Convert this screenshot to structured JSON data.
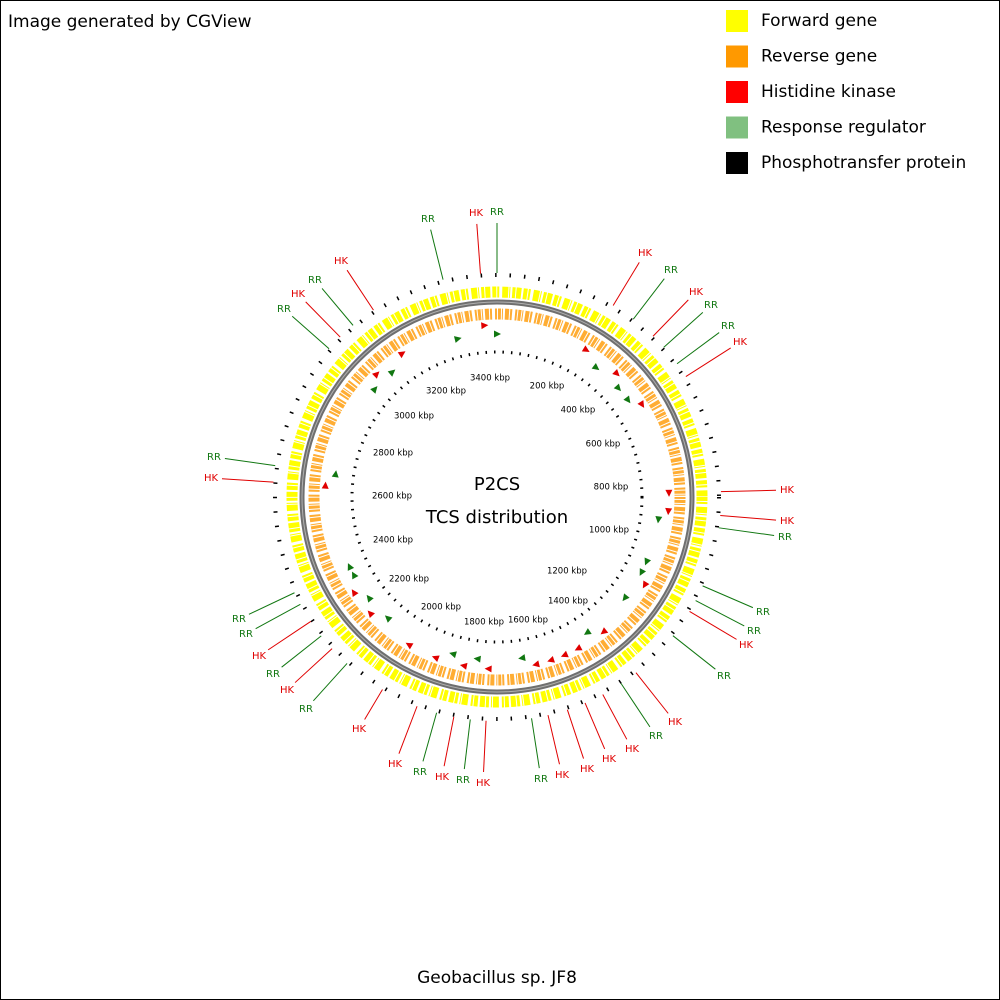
{
  "header": {
    "credit": "Image generated by CGView"
  },
  "legend": [
    {
      "label": "Forward gene",
      "color": "#ffff00"
    },
    {
      "label": "Reverse gene",
      "color": "#ff9900"
    },
    {
      "label": "Histidine kinase",
      "color": "#ff0000"
    },
    {
      "label": "Response regulator",
      "color": "#80c080"
    },
    {
      "label": "Phosphotransfer protein",
      "color": "#000000"
    }
  ],
  "center": {
    "title": "P2CS",
    "subtitle": "TCS distribution"
  },
  "scale_labels": [
    "200 kbp",
    "400 kbp",
    "600 kbp",
    "800 kbp",
    "1000 kbp",
    "1200 kbp",
    "1400 kbp",
    "1600 kbp",
    "1800 kbp",
    "2000 kbp",
    "2200 kbp",
    "2400 kbp",
    "2600 kbp",
    "2800 kbp",
    "3000 kbp",
    "3200 kbp",
    "3400 kbp"
  ],
  "callouts": [
    "RR",
    "HK",
    "RR",
    "HK",
    "RR",
    "HK",
    "RR",
    "RR",
    "HK",
    "HK",
    "HK",
    "RR",
    "RR",
    "RR",
    "HK",
    "RR",
    "HK",
    "RR",
    "HK",
    "HK",
    "HK",
    "HK",
    "RR",
    "HK",
    "RR",
    "HK",
    "RR",
    "HK",
    "HK",
    "RR",
    "HK",
    "RR",
    "HK",
    "RR",
    "RR",
    "RR",
    "HK",
    "RR",
    "HK",
    "RR",
    "HK"
  ],
  "footer": "Geobacillus sp. JF8"
}
